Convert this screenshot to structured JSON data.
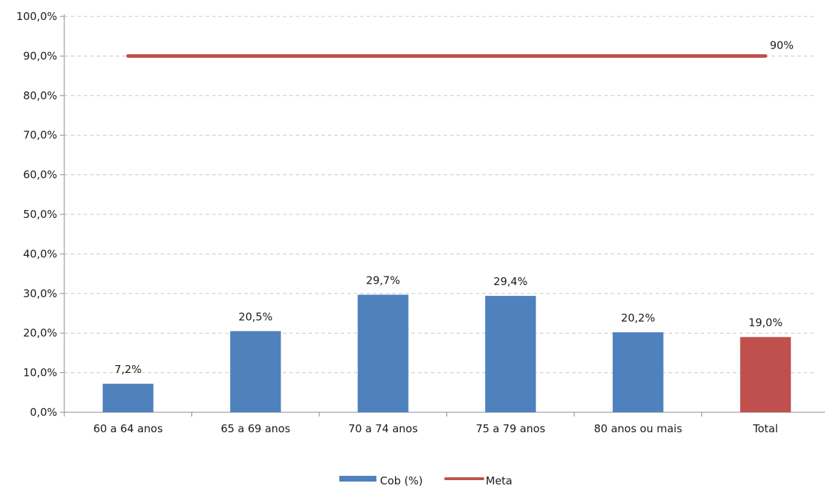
{
  "chart_data": {
    "type": "bar",
    "categories": [
      "60 a 64 anos",
      "65 a 69 anos",
      "70 a 74 anos",
      "75 a 79 anos",
      "80 anos ou mais",
      "Total"
    ],
    "series": [
      {
        "name": "Cob (%)",
        "type": "bar",
        "values": [
          7.2,
          20.5,
          29.7,
          29.4,
          20.2,
          19.0
        ],
        "data_labels": [
          "7,2%",
          "20,5%",
          "29,7%",
          "29,4%",
          "20,2%",
          "19,0%"
        ],
        "colors": [
          "#4f81bd",
          "#4f81bd",
          "#4f81bd",
          "#4f81bd",
          "#4f81bd",
          "#c0504d"
        ]
      },
      {
        "name": "Meta",
        "type": "line",
        "values": [
          90,
          90,
          90,
          90,
          90,
          90
        ],
        "end_label": "90%",
        "color": "#c0504d"
      }
    ],
    "y_ticks": [
      0,
      10,
      20,
      30,
      40,
      50,
      60,
      70,
      80,
      90,
      100
    ],
    "y_tick_labels": [
      "0,0%",
      "10,0%",
      "20,0%",
      "30,0%",
      "40,0%",
      "50,0%",
      "60,0%",
      "70,0%",
      "80,0%",
      "90,0%",
      "100,0%"
    ],
    "ylim": [
      0,
      100
    ],
    "grid": true,
    "legend_position": "bottom",
    "legend": [
      {
        "label": "Cob (%)",
        "color": "#4f81bd",
        "kind": "bar"
      },
      {
        "label": "Meta",
        "color": "#c0504d",
        "kind": "line"
      }
    ]
  }
}
